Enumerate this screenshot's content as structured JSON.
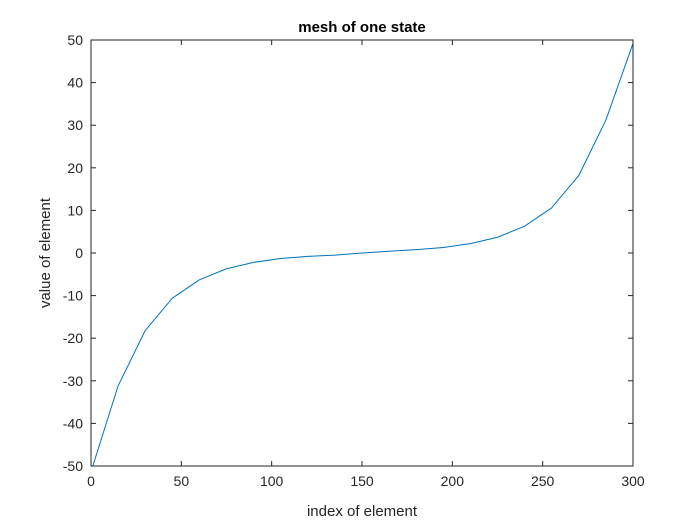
{
  "chart_data": {
    "type": "line",
    "title": "mesh of one state",
    "xlabel": "index of element",
    "ylabel": "value of element",
    "xlim": [
      0,
      300
    ],
    "ylim": [
      -50,
      50
    ],
    "xticks": [
      0,
      50,
      100,
      150,
      200,
      250,
      300
    ],
    "yticks": [
      -50,
      -40,
      -30,
      -20,
      -10,
      0,
      10,
      20,
      30,
      40,
      50
    ],
    "grid": false,
    "series": [
      {
        "color": "#0072bd",
        "x": [
          1,
          15,
          30,
          45,
          60,
          75,
          90,
          105,
          120,
          135,
          150,
          165,
          180,
          195,
          210,
          225,
          240,
          255,
          270,
          285,
          300
        ],
        "y": [
          -50,
          -31.2,
          -18.2,
          -10.6,
          -6.3,
          -3.7,
          -2.2,
          -1.3,
          -0.8,
          -0.5,
          0,
          0.4,
          0.8,
          1.3,
          2.2,
          3.7,
          6.3,
          10.6,
          18.2,
          31.2,
          49.2
        ]
      }
    ]
  }
}
